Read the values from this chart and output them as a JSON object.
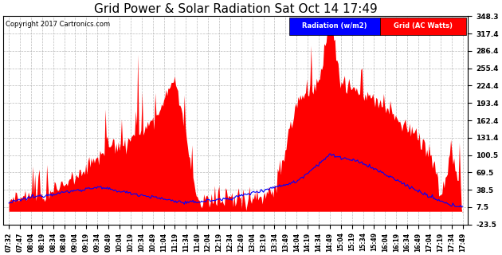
{
  "title": "Grid Power & Solar Radiation Sat Oct 14 17:49",
  "copyright": "Copyright 2017 Cartronics.com",
  "legend_labels": [
    "Radiation (w/m2)",
    "Grid (AC Watts)"
  ],
  "legend_colors": [
    "blue",
    "red"
  ],
  "yticks": [
    -23.5,
    7.5,
    38.5,
    69.5,
    100.5,
    131.4,
    162.4,
    193.4,
    224.4,
    255.4,
    286.4,
    317.4,
    348.3
  ],
  "ymin": -23.5,
  "ymax": 348.3,
  "background_color": "#ffffff",
  "plot_bg_color": "#ffffff",
  "grid_color": "#aaaaaa",
  "title_fontsize": 11,
  "xtick_labels": [
    "07:32",
    "07:47",
    "08:04",
    "08:19",
    "08:34",
    "08:49",
    "09:04",
    "09:19",
    "09:34",
    "09:49",
    "10:04",
    "10:19",
    "10:34",
    "10:49",
    "11:04",
    "11:19",
    "11:34",
    "11:49",
    "12:04",
    "12:19",
    "12:34",
    "12:49",
    "13:04",
    "13:19",
    "13:34",
    "13:49",
    "14:04",
    "14:19",
    "14:34",
    "14:49",
    "15:04",
    "15:19",
    "15:34",
    "15:49",
    "16:04",
    "16:19",
    "16:34",
    "16:49",
    "17:04",
    "17:19",
    "17:34",
    "17:49"
  ],
  "radiation_color": "blue",
  "grid_power_color": "red"
}
